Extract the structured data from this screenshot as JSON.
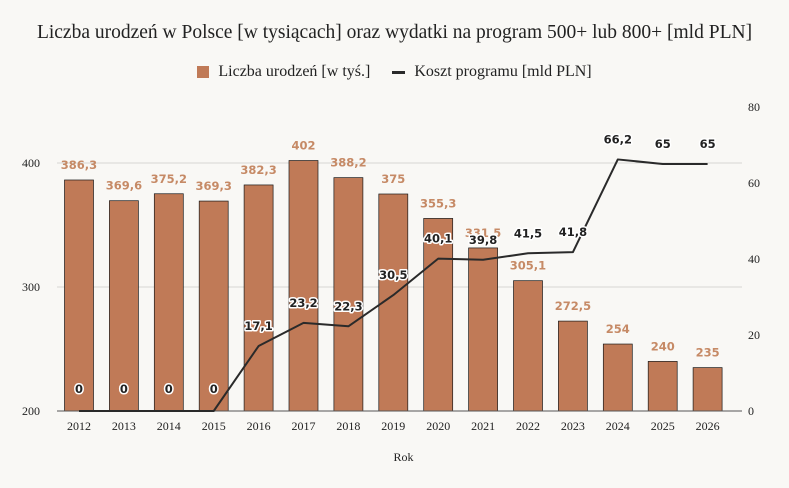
{
  "chart_data": {
    "type": "bar",
    "title": "Liczba urodzeń w Polsce [w tysiącach] oraz wydatki na program 500+ lub 800+ [mld PLN]",
    "xlabel": "Rok",
    "ylabel": "",
    "y2label": "",
    "categories": [
      "2012",
      "2013",
      "2014",
      "2015",
      "2016",
      "2017",
      "2018",
      "2019",
      "2020",
      "2021",
      "2022",
      "2023",
      "2024",
      "2025",
      "2026"
    ],
    "series": [
      {
        "name": "Liczba urodzeń [w tyś.]",
        "type": "bar",
        "axis": "left",
        "color": "#c07a57",
        "values": [
          386.3,
          369.6,
          375.2,
          369.3,
          382.3,
          402,
          388.2,
          375,
          355.3,
          331.5,
          305.1,
          272.5,
          254,
          240,
          235
        ],
        "labels": [
          "386,3",
          "369,6",
          "375,2",
          "369,3",
          "382,3",
          "402",
          "388,2",
          "375",
          "355,3",
          "331,5",
          "305,1",
          "272,5",
          "254",
          "240",
          "235"
        ]
      },
      {
        "name": "Koszt programu [mld PLN]",
        "type": "line",
        "axis": "right",
        "color": "#2a2a2a",
        "values": [
          0,
          0,
          0,
          0,
          17.1,
          23.2,
          22.3,
          30.5,
          40.1,
          39.8,
          41.5,
          41.8,
          66.2,
          65,
          65
        ],
        "labels": [
          "0",
          "0",
          "0",
          "0",
          "17,1",
          "23,2",
          "22,3",
          "30,5",
          "40,1",
          "39,8",
          "41,5",
          "41,8",
          "66,2",
          "65",
          "65"
        ]
      }
    ],
    "ylim": [
      200,
      400
    ],
    "y_ticks": [
      "200",
      "300",
      "400"
    ],
    "y2lim": [
      0,
      80
    ],
    "y2_ticks": [
      "0",
      "20",
      "40",
      "60",
      "80"
    ],
    "legend_position": "top-center",
    "grid": true
  }
}
